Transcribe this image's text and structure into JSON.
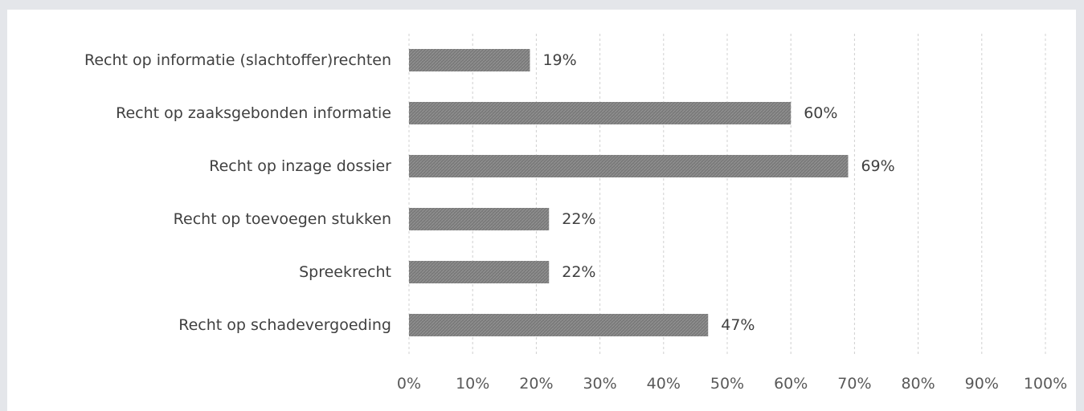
{
  "chart_data": {
    "type": "bar",
    "orientation": "horizontal",
    "categories": [
      "Recht op informatie (slachtoffer)rechten",
      "Recht op zaaksgebonden informatie",
      "Recht op inzage dossier",
      "Recht op toevoegen stukken",
      "Spreekrecht",
      "Recht op schadevergoeding"
    ],
    "values": [
      19,
      60,
      69,
      22,
      22,
      47
    ],
    "value_labels": [
      "19%",
      "60%",
      "69%",
      "22%",
      "22%",
      "47%"
    ],
    "x_ticks": [
      "0%",
      "10%",
      "20%",
      "30%",
      "40%",
      "50%",
      "60%",
      "70%",
      "80%",
      "90%",
      "100%"
    ],
    "xlim": [
      0,
      100
    ],
    "grid": "vertical dashed",
    "bar_color": "#808080",
    "bar_fill": "hatched gray"
  }
}
